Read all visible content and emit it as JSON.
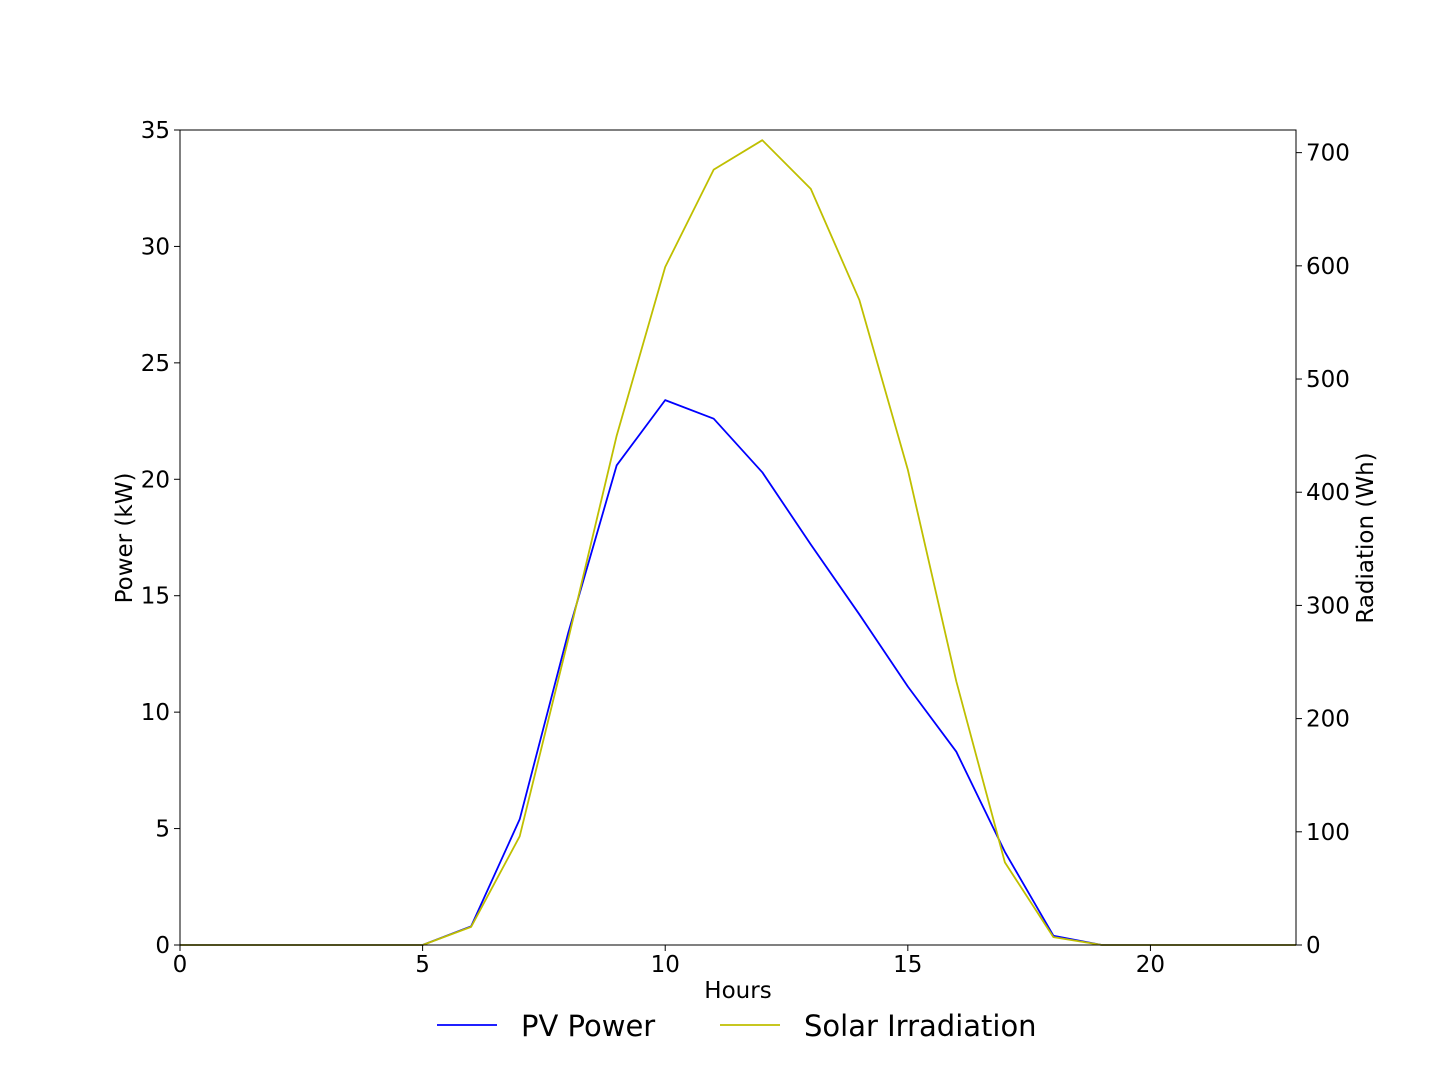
{
  "chart_data": {
    "type": "line",
    "title": "",
    "xlabel": "Hours",
    "ylabel_left": "Power (kW)",
    "ylabel_right": "Radiation (Wh)",
    "xlim": [
      0,
      23
    ],
    "ylim_left": [
      0,
      35
    ],
    "ylim_right": [
      0,
      720
    ],
    "x_ticks": [
      0,
      5,
      10,
      15,
      20
    ],
    "y_ticks_left": [
      0,
      5,
      10,
      15,
      20,
      25,
      30,
      35
    ],
    "y_ticks_right": [
      0,
      100,
      200,
      300,
      400,
      500,
      600,
      700
    ],
    "grid": false,
    "legend": {
      "placement": "bottom-center",
      "entries": [
        "PV Power",
        "Solar Irradiation"
      ]
    },
    "x": [
      0,
      1,
      2,
      3,
      4,
      5,
      6,
      7,
      8,
      9,
      10,
      11,
      12,
      13,
      14,
      15,
      16,
      17,
      18,
      19,
      20,
      21,
      22,
      23
    ],
    "series": [
      {
        "name": "PV Power",
        "axis": "left",
        "color": "#0000ff",
        "values": [
          0,
          0,
          0,
          0,
          0,
          0,
          0.8,
          5.4,
          13.4,
          20.6,
          23.4,
          22.6,
          20.3,
          17.2,
          14.2,
          11.1,
          8.3,
          4.0,
          0.4,
          0,
          0,
          0,
          0,
          0
        ]
      },
      {
        "name": "Solar Irradiation",
        "axis": "right",
        "color": "#bfbf00",
        "values": [
          0,
          0,
          0,
          0,
          0,
          0,
          16,
          96,
          270,
          450,
          599,
          685,
          711,
          668,
          570,
          420,
          233,
          73,
          7,
          0,
          0,
          0,
          0,
          0
        ]
      }
    ]
  }
}
